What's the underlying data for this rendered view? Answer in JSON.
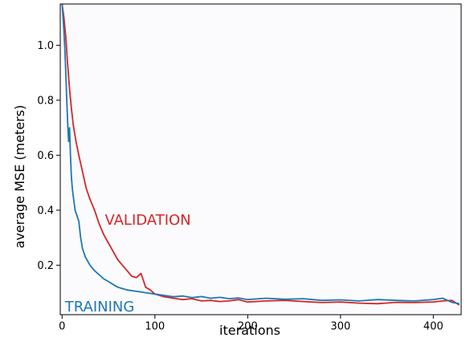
{
  "chart_data": {
    "type": "line",
    "xlabel": "iterations",
    "ylabel": "average MSE (meters)",
    "xlim": [
      -2,
      430
    ],
    "ylim": [
      0.02,
      1.15
    ],
    "xticks": [
      0,
      100,
      200,
      300,
      400
    ],
    "yticks": [
      0.2,
      0.4,
      0.6,
      0.8,
      1.0
    ],
    "ytick_labels": [
      "0.2",
      "0.4",
      "0.6",
      "0.8",
      "1.0"
    ],
    "grid": false,
    "background": "#fbfbfd",
    "series": [
      {
        "name": "VALIDATION",
        "color": "#d62728",
        "label_at": [
          46,
          0.365
        ],
        "x": [
          0,
          2,
          4,
          6,
          8,
          10,
          12,
          15,
          18,
          22,
          26,
          30,
          35,
          40,
          45,
          50,
          55,
          60,
          65,
          70,
          75,
          80,
          85,
          90,
          95,
          100,
          110,
          120,
          130,
          140,
          150,
          160,
          170,
          180,
          190,
          200,
          220,
          240,
          260,
          280,
          300,
          320,
          340,
          360,
          380,
          400,
          410,
          420,
          428
        ],
        "y": [
          1.15,
          1.1,
          1.03,
          0.93,
          0.84,
          0.77,
          0.71,
          0.65,
          0.6,
          0.54,
          0.48,
          0.44,
          0.4,
          0.35,
          0.31,
          0.28,
          0.25,
          0.22,
          0.2,
          0.18,
          0.16,
          0.155,
          0.17,
          0.12,
          0.11,
          0.095,
          0.085,
          0.08,
          0.075,
          0.078,
          0.07,
          0.072,
          0.068,
          0.07,
          0.075,
          0.066,
          0.07,
          0.072,
          0.068,
          0.064,
          0.066,
          0.062,
          0.06,
          0.065,
          0.064,
          0.066,
          0.07,
          0.072,
          0.055
        ]
      },
      {
        "name": "TRAINING",
        "color": "#1f77b4",
        "label_at": [
          3,
          0.05
        ],
        "x": [
          0,
          1,
          2,
          3,
          4,
          5,
          6,
          7,
          8,
          9,
          10,
          11,
          12,
          14,
          16,
          18,
          20,
          22,
          25,
          30,
          35,
          40,
          45,
          50,
          55,
          60,
          70,
          80,
          90,
          100,
          110,
          120,
          130,
          140,
          150,
          160,
          170,
          180,
          190,
          200,
          220,
          240,
          260,
          280,
          300,
          320,
          340,
          360,
          380,
          400,
          410,
          420,
          428
        ],
        "y": [
          1.15,
          1.1,
          1.05,
          0.98,
          0.9,
          0.8,
          0.72,
          0.65,
          0.7,
          0.6,
          0.52,
          0.48,
          0.45,
          0.4,
          0.38,
          0.36,
          0.3,
          0.26,
          0.23,
          0.2,
          0.18,
          0.165,
          0.15,
          0.14,
          0.13,
          0.12,
          0.11,
          0.105,
          0.1,
          0.095,
          0.09,
          0.085,
          0.088,
          0.082,
          0.086,
          0.08,
          0.083,
          0.078,
          0.081,
          0.075,
          0.08,
          0.076,
          0.078,
          0.072,
          0.074,
          0.07,
          0.075,
          0.072,
          0.07,
          0.075,
          0.08,
          0.065,
          0.06
        ]
      }
    ]
  }
}
